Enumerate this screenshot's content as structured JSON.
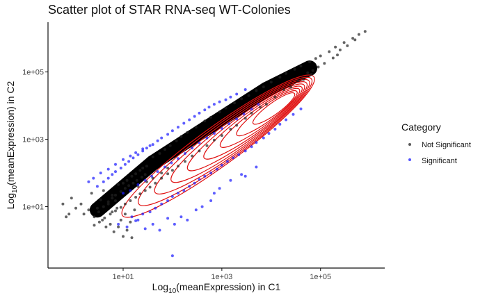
{
  "chart_data": {
    "type": "scatter",
    "title": "Scatter plot of STAR RNA-seq WT-Colonies",
    "xlabel": {
      "prefix": "Log",
      "sub": "10",
      "rest": "(meanExpression) in C1"
    },
    "ylabel": {
      "prefix": "Log",
      "sub": "10",
      "rest": "(meanExpression) in C2"
    },
    "x_scale": "log10",
    "y_scale": "log10",
    "xlim": [
      0.3,
      2000000
    ],
    "ylim": [
      0.15,
      3000000
    ],
    "x_ticks": [
      {
        "value": 10,
        "label": "1e+01"
      },
      {
        "value": 1000,
        "label": "1e+03"
      },
      {
        "value": 100000,
        "label": "1e+05"
      }
    ],
    "y_ticks": [
      {
        "value": 10,
        "label": "1e+01"
      },
      {
        "value": 1000,
        "label": "1e+03"
      },
      {
        "value": 100000,
        "label": "1e+05"
      }
    ],
    "grid": false,
    "legend": {
      "title": "Category",
      "placement": "right",
      "entries": [
        {
          "label": "Not Significant",
          "color": "#222222"
        },
        {
          "label": "Significant",
          "color": "#1a1aff"
        }
      ]
    },
    "density_contours": {
      "color": "#e01010",
      "center": [
        30000,
        22000
      ],
      "levels": 9
    },
    "series": [
      {
        "name": "Not Significant",
        "color": "#222222",
        "points": [
          [
            0.6,
            12
          ],
          [
            0.7,
            5
          ],
          [
            0.8,
            6
          ],
          [
            0.9,
            18
          ],
          [
            1.1,
            9
          ],
          [
            1.4,
            12
          ],
          [
            1.6,
            6
          ],
          [
            2,
            8
          ],
          [
            2.3,
            25
          ],
          [
            2.6,
            5
          ],
          [
            3,
            9
          ],
          [
            3.2,
            7
          ],
          [
            3.5,
            16
          ],
          [
            3.8,
            4
          ],
          [
            4,
            10
          ],
          [
            4.5,
            2.5
          ],
          [
            5,
            12
          ],
          [
            5.5,
            3
          ],
          [
            6,
            7
          ],
          [
            6.5,
            1.8
          ],
          [
            7,
            15
          ],
          [
            7.5,
            9
          ],
          [
            8,
            2.5
          ],
          [
            9,
            4
          ],
          [
            10,
            1.3
          ],
          [
            11,
            6
          ],
          [
            12,
            2
          ],
          [
            14,
            3.5
          ],
          [
            15,
            1.2
          ],
          [
            17,
            8
          ],
          [
            4,
            30
          ],
          [
            6,
            22
          ],
          [
            8,
            45
          ],
          [
            10,
            50
          ],
          [
            12,
            60
          ],
          [
            15,
            80
          ],
          [
            18,
            95
          ],
          [
            22,
            120
          ],
          [
            25,
            140
          ],
          [
            30,
            160
          ],
          [
            40,
            300
          ],
          [
            55,
            380
          ],
          [
            70,
            500
          ],
          [
            90,
            650
          ],
          [
            120,
            900
          ],
          [
            150,
            1200
          ],
          [
            200,
            1600
          ],
          [
            300,
            2300
          ],
          [
            450,
            3500
          ],
          [
            600,
            4500
          ],
          [
            900,
            6500
          ],
          [
            1200,
            8500
          ],
          [
            1800,
            12000
          ],
          [
            2500,
            16000
          ],
          [
            3500,
            20000
          ],
          [
            5000,
            28000
          ],
          [
            7000,
            36000
          ],
          [
            10000,
            50000
          ],
          [
            15000,
            70000
          ],
          [
            20000,
            90000
          ],
          [
            30000,
            120000
          ],
          [
            40000,
            150000
          ],
          [
            60000,
            200000
          ],
          [
            80000,
            250000
          ],
          [
            100000,
            300000
          ],
          [
            150000,
            400000
          ],
          [
            200000,
            550000
          ],
          [
            300000,
            750000
          ],
          [
            450000,
            1000000
          ],
          [
            600000,
            1300000
          ],
          [
            800000,
            1600000
          ],
          [
            250000,
            450000
          ],
          [
            350000,
            600000
          ],
          [
            500000,
            900000
          ],
          [
            120000,
            180000
          ],
          [
            180000,
            260000
          ],
          [
            220000,
            320000
          ],
          [
            90000,
            140000
          ],
          [
            70000,
            110000
          ],
          [
            55000,
            95000
          ],
          [
            25000,
            35000
          ],
          [
            45000,
            60000
          ],
          [
            65000,
            85000
          ],
          [
            35000,
            55000
          ],
          [
            12000,
            18000
          ],
          [
            18000,
            30000
          ],
          [
            8000,
            11000
          ],
          [
            6000,
            9000
          ],
          [
            4000,
            6000
          ],
          [
            3000,
            4200
          ],
          [
            2000,
            2600
          ],
          [
            1500,
            2000
          ],
          [
            1000,
            1300
          ],
          [
            700,
            950
          ],
          [
            500,
            650
          ],
          [
            350,
            450
          ],
          [
            250,
            320
          ],
          [
            180,
            220
          ],
          [
            130,
            160
          ],
          [
            100,
            120
          ],
          [
            80,
            95
          ],
          [
            60,
            70
          ],
          [
            45,
            50
          ],
          [
            35,
            38
          ],
          [
            28,
            30
          ],
          [
            22,
            24
          ],
          [
            18,
            19
          ],
          [
            14,
            15
          ],
          [
            11,
            12
          ],
          [
            9,
            9.5
          ],
          [
            7,
            7.5
          ],
          [
            5.5,
            6
          ],
          [
            4.2,
            4.6
          ],
          [
            3.3,
            3.5
          ],
          [
            2.6,
            2.8
          ],
          [
            20,
            40
          ],
          [
            30,
            55
          ],
          [
            40,
            70
          ],
          [
            60,
            100
          ],
          [
            80,
            140
          ],
          [
            5,
            14
          ],
          [
            6,
            18
          ],
          [
            7,
            22
          ],
          [
            9,
            28
          ],
          [
            11,
            35
          ],
          [
            13,
            42
          ],
          [
            16,
            50
          ],
          [
            19,
            60
          ],
          [
            24,
            75
          ],
          [
            28,
            90
          ]
        ]
      },
      {
        "name": "Significant",
        "color": "#1a1aff",
        "points": [
          [
            3,
            40
          ],
          [
            4,
            55
          ],
          [
            5,
            70
          ],
          [
            6,
            90
          ],
          [
            7,
            110
          ],
          [
            9,
            140
          ],
          [
            11,
            180
          ],
          [
            13,
            220
          ],
          [
            16,
            280
          ],
          [
            20,
            350
          ],
          [
            25,
            450
          ],
          [
            30,
            550
          ],
          [
            40,
            700
          ],
          [
            50,
            900
          ],
          [
            60,
            1100
          ],
          [
            80,
            1400
          ],
          [
            100,
            1800
          ],
          [
            130,
            2300
          ],
          [
            170,
            3000
          ],
          [
            220,
            3800
          ],
          [
            280,
            4800
          ],
          [
            350,
            6000
          ],
          [
            450,
            7500
          ],
          [
            550,
            9000
          ],
          [
            700,
            11000
          ],
          [
            900,
            13000
          ],
          [
            1200,
            15000
          ],
          [
            1500,
            18000
          ],
          [
            2000,
            22000
          ],
          [
            3000,
            30000
          ],
          [
            15,
            5
          ],
          [
            20,
            4
          ],
          [
            25,
            6
          ],
          [
            35,
            7
          ],
          [
            45,
            9
          ],
          [
            60,
            12
          ],
          [
            80,
            15
          ],
          [
            100,
            20
          ],
          [
            130,
            25
          ],
          [
            170,
            30
          ],
          [
            220,
            40
          ],
          [
            280,
            50
          ],
          [
            350,
            65
          ],
          [
            450,
            80
          ],
          [
            600,
            100
          ],
          [
            800,
            130
          ],
          [
            1000,
            170
          ],
          [
            1300,
            220
          ],
          [
            1700,
            280
          ],
          [
            2200,
            350
          ],
          [
            3000,
            450
          ],
          [
            4000,
            600
          ],
          [
            5000,
            800
          ],
          [
            7000,
            1100
          ],
          [
            9000,
            1500
          ],
          [
            12000,
            2000
          ],
          [
            15000,
            2800
          ],
          [
            20000,
            3800
          ],
          [
            28000,
            5500
          ],
          [
            40000,
            8000
          ],
          [
            8,
            3
          ],
          [
            12,
            2.5
          ],
          [
            18,
            3.8
          ],
          [
            28,
            2.2
          ],
          [
            40,
            3
          ],
          [
            55,
            2
          ],
          [
            80,
            4.5
          ],
          [
            110,
            3
          ],
          [
            150,
            5
          ],
          [
            200,
            4
          ],
          [
            2,
            55
          ],
          [
            2.5,
            70
          ],
          [
            3.5,
            100
          ],
          [
            5,
            130
          ],
          [
            7,
            180
          ],
          [
            10,
            250
          ],
          [
            14,
            320
          ],
          [
            18,
            400
          ],
          [
            25,
            520
          ],
          [
            35,
            650
          ],
          [
            100,
            0.35
          ],
          [
            3000,
            80
          ],
          [
            5000,
            150
          ],
          [
            700,
            25
          ],
          [
            900,
            35
          ],
          [
            1500,
            60
          ],
          [
            2500,
            90
          ],
          [
            600,
            15
          ],
          [
            400,
            10
          ],
          [
            300,
            8
          ],
          [
            10,
            25
          ],
          [
            14,
            30
          ],
          [
            20,
            45
          ],
          [
            28,
            60
          ],
          [
            38,
            80
          ],
          [
            50,
            110
          ],
          [
            70,
            150
          ],
          [
            95,
            200
          ],
          [
            130,
            270
          ],
          [
            180,
            380
          ],
          [
            250,
            550
          ],
          [
            350,
            780
          ],
          [
            500,
            1100
          ],
          [
            700,
            1500
          ],
          [
            1000,
            2100
          ],
          [
            1400,
            2900
          ],
          [
            2000,
            4000
          ],
          [
            2800,
            5600
          ],
          [
            4000,
            7800
          ],
          [
            5500,
            11000
          ]
        ]
      }
    ]
  }
}
